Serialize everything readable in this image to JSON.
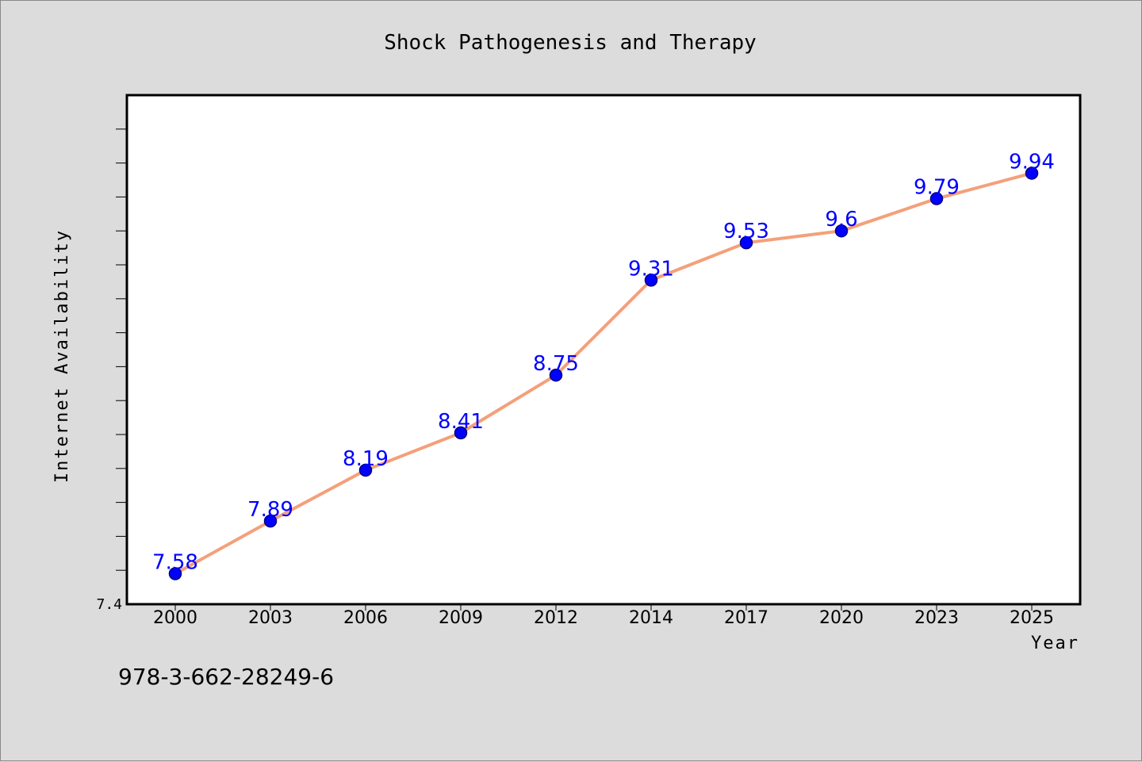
{
  "chart_data": {
    "type": "line",
    "title": "Shock Pathogenesis and Therapy",
    "xlabel": "Year",
    "ylabel": "Internet Availability",
    "categories": [
      "2000",
      "2003",
      "2006",
      "2009",
      "2012",
      "2014",
      "2017",
      "2020",
      "2023",
      "2025"
    ],
    "series": [
      {
        "values": [
          7.58,
          7.89,
          8.19,
          8.41,
          8.75,
          9.31,
          9.53,
          9.6,
          9.79,
          9.94
        ],
        "labels": [
          "7.58",
          "7.89",
          "8.19",
          "8.41",
          "8.75",
          "9.31",
          "9.53",
          "9.6",
          "9.79",
          "9.94"
        ]
      }
    ],
    "ylim": [
      7.4,
      10.4
    ],
    "ytick_labels": [
      "7.4"
    ],
    "grid": false,
    "legend": "none",
    "colors": {
      "line": "#f4a07a",
      "marker": "#0000ff",
      "marker_edge": "#000080",
      "data_label": "#0000ff",
      "background": "#dcdcdc",
      "plot_background": "#ffffff"
    }
  },
  "footer": {
    "isbn": "978-3-662-28249-6"
  }
}
